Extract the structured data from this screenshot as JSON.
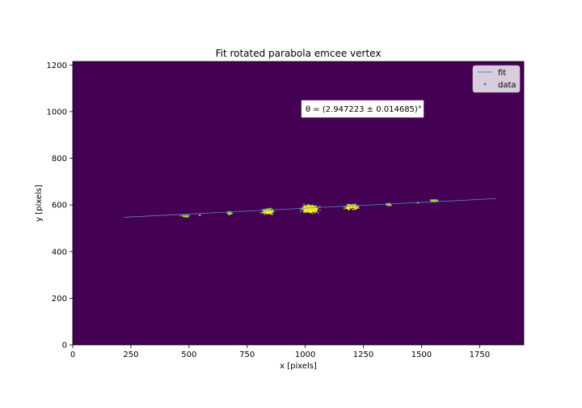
{
  "chart_data": {
    "type": "scatter",
    "title": "Fit rotated parabola emcee vertex",
    "xlabel": "x [pixels]",
    "ylabel": "y [pixels]",
    "xlim": [
      0,
      1940
    ],
    "ylim": [
      0,
      1215
    ],
    "xticks": [
      0,
      250,
      500,
      750,
      1000,
      1250,
      1500,
      1750
    ],
    "yticks": [
      0,
      200,
      400,
      600,
      800,
      1000,
      1200
    ],
    "background_color": "#440154",
    "grid": false,
    "legend_position": "top-right",
    "legend": [
      {
        "label": "fit",
        "kind": "line",
        "color": "#5b82c8"
      },
      {
        "label": "data",
        "kind": "marker",
        "color": "#4a7fc0"
      }
    ],
    "annotation": "θ = (2.947223 ± 0.014685)°",
    "fit_line": {
      "color": "#5b82c8",
      "points": [
        [
          220,
          547
        ],
        [
          1820,
          627
        ]
      ]
    },
    "data_clusters": [
      {
        "x": 485,
        "y": 552,
        "wx": 30,
        "wy": 6,
        "n": 40,
        "color": "#a0da39"
      },
      {
        "x": 545,
        "y": 556,
        "wx": 5,
        "wy": 3,
        "n": 4,
        "color": "#a0da39"
      },
      {
        "x": 675,
        "y": 565,
        "wx": 18,
        "wy": 10,
        "n": 30,
        "color": "#a0da39"
      },
      {
        "x": 840,
        "y": 572,
        "wx": 42,
        "wy": 18,
        "n": 110,
        "color": "#fde725"
      },
      {
        "x": 1020,
        "y": 582,
        "wx": 60,
        "wy": 28,
        "n": 230,
        "color": "#fde725"
      },
      {
        "x": 1200,
        "y": 592,
        "wx": 45,
        "wy": 20,
        "n": 120,
        "color": "#fde725"
      },
      {
        "x": 1360,
        "y": 602,
        "wx": 20,
        "wy": 10,
        "n": 35,
        "color": "#a0da39"
      },
      {
        "x": 1485,
        "y": 609,
        "wx": 5,
        "wy": 3,
        "n": 4,
        "color": "#a0da39"
      },
      {
        "x": 1555,
        "y": 617,
        "wx": 28,
        "wy": 9,
        "n": 45,
        "color": "#a0da39"
      }
    ]
  }
}
